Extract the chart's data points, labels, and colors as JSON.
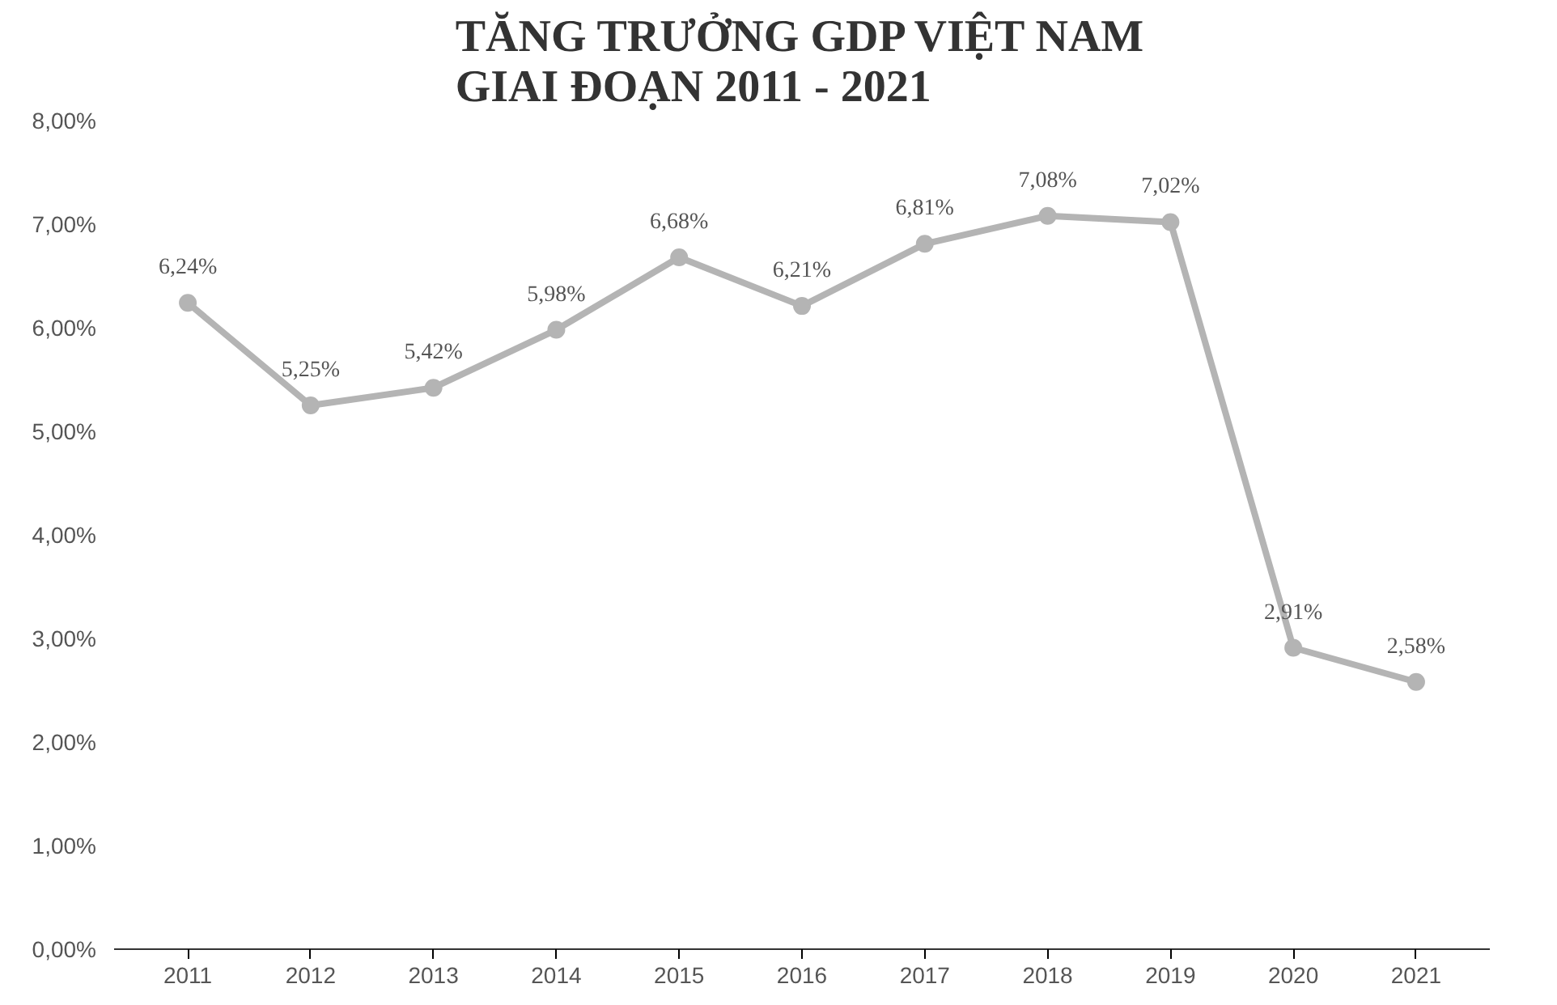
{
  "chart_data": {
    "type": "line",
    "title": "TĂNG TRƯỞNG GDP VIỆT NAM\nGIAI ĐOẠN 2011 - 2021",
    "categories": [
      "2011",
      "2012",
      "2013",
      "2014",
      "2015",
      "2016",
      "2017",
      "2018",
      "2019",
      "2020",
      "2021"
    ],
    "series": [
      {
        "color": "#b4b4b4",
        "values": [
          6.24,
          5.25,
          5.42,
          5.98,
          6.68,
          6.21,
          6.81,
          7.08,
          7.02,
          2.91,
          2.58
        ],
        "value_labels": [
          "6,24%",
          "5,25%",
          "5,42%",
          "5,98%",
          "6,68%",
          "6,21%",
          "6,81%",
          "7,08%",
          "7,02%",
          "2,91%",
          "2,58%"
        ]
      }
    ],
    "ylim": [
      0,
      8
    ],
    "yticks": [
      {
        "value": 0,
        "label": "0,00%"
      },
      {
        "value": 1,
        "label": "1,00%"
      },
      {
        "value": 2,
        "label": "2,00%"
      },
      {
        "value": 3,
        "label": "3,00%"
      },
      {
        "value": 4,
        "label": "4,00%"
      },
      {
        "value": 5,
        "label": "5,00%"
      },
      {
        "value": 6,
        "label": "6,00%"
      },
      {
        "value": 7,
        "label": "7,00%"
      },
      {
        "value": 8,
        "label": "8,00%"
      }
    ],
    "grid": false,
    "marker": "circle",
    "line_style": "solid"
  }
}
